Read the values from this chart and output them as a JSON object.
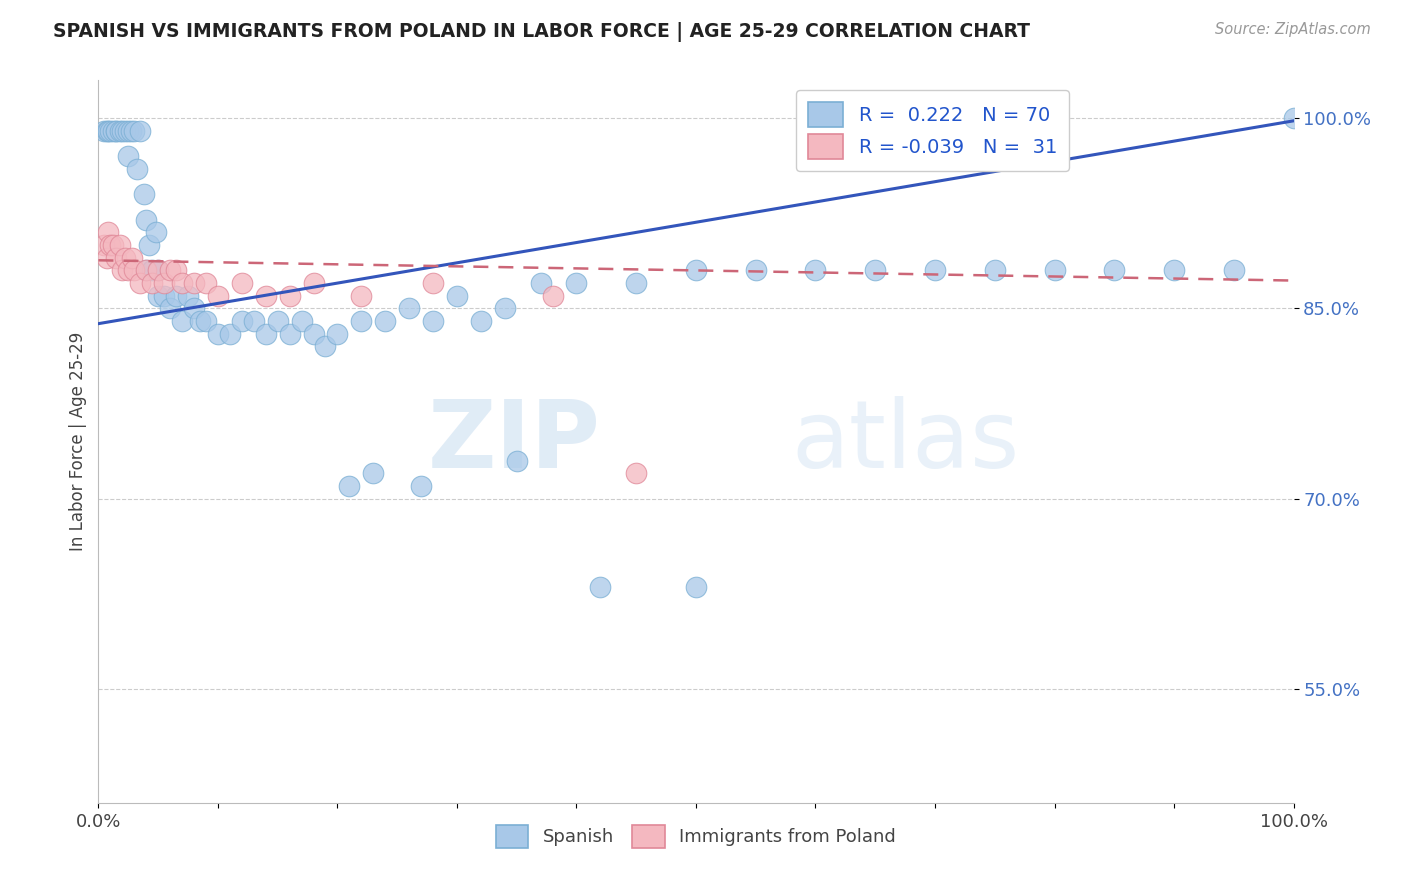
{
  "title": "SPANISH VS IMMIGRANTS FROM POLAND IN LABOR FORCE | AGE 25-29 CORRELATION CHART",
  "source": "Source: ZipAtlas.com",
  "ylabel": "In Labor Force | Age 25-29",
  "xlim": [
    0.0,
    1.0
  ],
  "ylim": [
    0.46,
    1.03
  ],
  "legend_R_blue": "0.222",
  "legend_N_blue": "70",
  "legend_R_pink": "-0.039",
  "legend_N_pink": "31",
  "blue_color": "#a8c8e8",
  "blue_edge": "#7bafd4",
  "pink_color": "#f4b8c0",
  "pink_edge": "#e08898",
  "line_blue": "#3355bb",
  "line_pink": "#cc6677",
  "ytick_color": "#4472C4",
  "blue_x": [
    0.005,
    0.007,
    0.008,
    0.01,
    0.012,
    0.015,
    0.015,
    0.018,
    0.02,
    0.022,
    0.025,
    0.025,
    0.027,
    0.03,
    0.032,
    0.035,
    0.038,
    0.04,
    0.04,
    0.042,
    0.045,
    0.048,
    0.05,
    0.05,
    0.055,
    0.06,
    0.065,
    0.07,
    0.075,
    0.08,
    0.085,
    0.09,
    0.1,
    0.11,
    0.12,
    0.13,
    0.14,
    0.15,
    0.16,
    0.17,
    0.18,
    0.19,
    0.2,
    0.22,
    0.24,
    0.26,
    0.28,
    0.3,
    0.32,
    0.34,
    0.37,
    0.4,
    0.45,
    0.5,
    0.55,
    0.6,
    0.65,
    0.7,
    0.75,
    0.8,
    0.85,
    0.9,
    0.95,
    1.0,
    0.21,
    0.23,
    0.27,
    0.35,
    0.42,
    0.5
  ],
  "blue_y": [
    0.99,
    0.99,
    0.99,
    0.99,
    0.99,
    0.99,
    0.99,
    0.99,
    0.99,
    0.99,
    0.99,
    0.97,
    0.99,
    0.99,
    0.96,
    0.99,
    0.94,
    0.92,
    0.88,
    0.9,
    0.88,
    0.91,
    0.86,
    0.88,
    0.86,
    0.85,
    0.86,
    0.84,
    0.86,
    0.85,
    0.84,
    0.84,
    0.83,
    0.83,
    0.84,
    0.84,
    0.83,
    0.84,
    0.83,
    0.84,
    0.83,
    0.82,
    0.83,
    0.84,
    0.84,
    0.85,
    0.84,
    0.86,
    0.84,
    0.85,
    0.87,
    0.87,
    0.87,
    0.88,
    0.88,
    0.88,
    0.88,
    0.88,
    0.88,
    0.88,
    0.88,
    0.88,
    0.88,
    1.0,
    0.71,
    0.72,
    0.71,
    0.73,
    0.63,
    0.63
  ],
  "pink_x": [
    0.005,
    0.007,
    0.008,
    0.01,
    0.012,
    0.015,
    0.018,
    0.02,
    0.022,
    0.025,
    0.028,
    0.03,
    0.035,
    0.04,
    0.045,
    0.05,
    0.055,
    0.06,
    0.065,
    0.07,
    0.08,
    0.09,
    0.1,
    0.12,
    0.14,
    0.16,
    0.18,
    0.22,
    0.28,
    0.38,
    0.45
  ],
  "pink_y": [
    0.9,
    0.89,
    0.91,
    0.9,
    0.9,
    0.89,
    0.9,
    0.88,
    0.89,
    0.88,
    0.89,
    0.88,
    0.87,
    0.88,
    0.87,
    0.88,
    0.87,
    0.88,
    0.88,
    0.87,
    0.87,
    0.87,
    0.86,
    0.87,
    0.86,
    0.86,
    0.87,
    0.86,
    0.87,
    0.86,
    0.72
  ],
  "blue_line_x": [
    0.0,
    1.0
  ],
  "blue_line_y": [
    0.838,
    0.998
  ],
  "pink_line_x": [
    0.0,
    1.0
  ],
  "pink_line_y": [
    0.888,
    0.872
  ],
  "y_ticks": [
    0.55,
    0.7,
    0.85,
    1.0
  ],
  "y_tick_labels": [
    "55.0%",
    "70.0%",
    "85.0%",
    "100.0%"
  ],
  "watermark_line1": "ZIP",
  "watermark_line2": "atlas"
}
